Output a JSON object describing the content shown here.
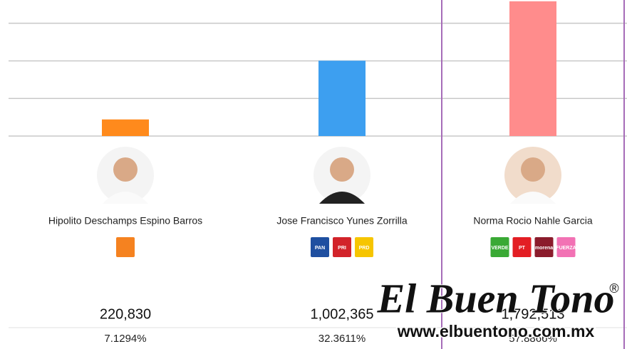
{
  "chart_data": {
    "type": "bar",
    "categories": [
      "Hipolito Deschamps Espino Barros",
      "Jose Francisco Yunes Zorrilla",
      "Norma Rocio Nahle Garcia"
    ],
    "values": [
      220830,
      1002365,
      1792513
    ],
    "value_labels": [
      "220,830",
      "1,002,365",
      "1,792,513"
    ],
    "share_labels": [
      "7.1294%",
      "32.3611%",
      "57.8866%"
    ],
    "colors": [
      "#ff8a1c",
      "#3d9ff0",
      "#ff8c8c"
    ],
    "ylim": [
      0,
      1800000
    ],
    "yticks": [
      0,
      500000,
      1000000,
      1500000
    ],
    "grid": true,
    "highlight": 2,
    "parties": [
      [
        {
          "color": "#f58220"
        }
      ],
      [
        {
          "label": "PAN",
          "color": "#1f4fa0"
        },
        {
          "label": "PRI",
          "color": "#d2232a"
        },
        {
          "label": "PRD",
          "color": "#f6c500"
        }
      ],
      [
        {
          "label": "VERDE",
          "color": "#3aa935"
        },
        {
          "label": "PT",
          "color": "#e31e24"
        },
        {
          "label": "morena",
          "color": "#8b1c2c"
        },
        {
          "label": "FUERZA",
          "color": "#f272b4"
        }
      ]
    ]
  },
  "watermark": {
    "title": "El Buen Tono",
    "mark": "®",
    "url": "www.elbuentono.com.mx"
  }
}
